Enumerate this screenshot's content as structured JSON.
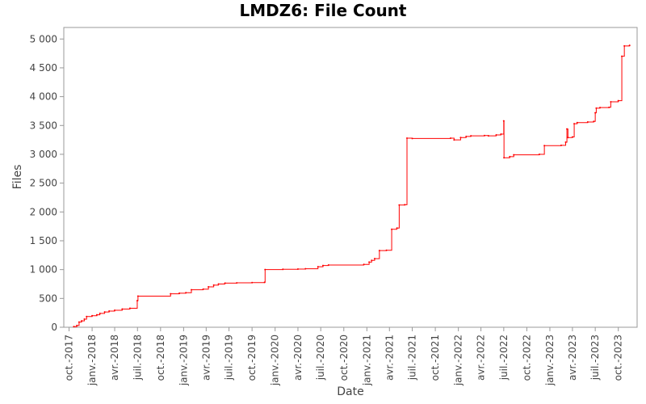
{
  "chart_data": {
    "type": "line",
    "title": "LMDZ6: File Count",
    "xlabel": "Date",
    "ylabel": "Files",
    "xlim": [
      "2017-09-10",
      "2023-12-15"
    ],
    "ylim": [
      0,
      5200
    ],
    "y_ticks": [
      0,
      500,
      1000,
      1500,
      2000,
      2500,
      3000,
      3500,
      4000,
      4500,
      5000
    ],
    "y_tick_labels": [
      "0",
      "500",
      "1 000",
      "1 500",
      "2 000",
      "2 500",
      "3 000",
      "3 500",
      "4 000",
      "4 500",
      "5 000"
    ],
    "x_ticks": [
      "2017-10-01",
      "2018-01-01",
      "2018-04-01",
      "2018-07-01",
      "2018-10-01",
      "2019-01-01",
      "2019-04-01",
      "2019-07-01",
      "2019-10-01",
      "2020-01-01",
      "2020-04-01",
      "2020-07-01",
      "2020-10-01",
      "2021-01-01",
      "2021-04-01",
      "2021-07-01",
      "2021-10-01",
      "2022-01-01",
      "2022-04-01",
      "2022-07-01",
      "2022-10-01",
      "2023-01-01",
      "2023-04-01",
      "2023-07-01",
      "2023-10-01"
    ],
    "x_tick_labels": [
      "oct.-2017",
      "janv.-2018",
      "avr.-2018",
      "juil.-2018",
      "oct.-2018",
      "janv.-2019",
      "avr.-2019",
      "juil.-2019",
      "oct.-2019",
      "janv.-2020",
      "avr.-2020",
      "juil.-2020",
      "oct.-2020",
      "janv.-2021",
      "avr.-2021",
      "juil.-2021",
      "oct.-2021",
      "janv.-2022",
      "avr.-2022",
      "juil.-2022",
      "oct.-2022",
      "janv.-2023",
      "avr.-2023",
      "juil.-2023",
      "oct.-2023"
    ],
    "grid": false,
    "legend": "none",
    "series": [
      {
        "color": "#ff0000",
        "step": true,
        "points": [
          [
            "2017-10-20",
            10
          ],
          [
            "2017-11-01",
            30
          ],
          [
            "2017-11-10",
            90
          ],
          [
            "2017-11-20",
            110
          ],
          [
            "2017-12-01",
            140
          ],
          [
            "2017-12-10",
            185
          ],
          [
            "2018-01-01",
            200
          ],
          [
            "2018-01-20",
            215
          ],
          [
            "2018-02-01",
            240
          ],
          [
            "2018-02-20",
            265
          ],
          [
            "2018-03-10",
            280
          ],
          [
            "2018-04-01",
            295
          ],
          [
            "2018-05-01",
            315
          ],
          [
            "2018-06-01",
            330
          ],
          [
            "2018-06-30",
            460
          ],
          [
            "2018-07-03",
            540
          ],
          [
            "2018-11-10",
            580
          ],
          [
            "2018-12-15",
            590
          ],
          [
            "2019-01-10",
            600
          ],
          [
            "2019-02-01",
            650
          ],
          [
            "2019-03-20",
            660
          ],
          [
            "2019-04-10",
            700
          ],
          [
            "2019-05-01",
            730
          ],
          [
            "2019-05-20",
            750
          ],
          [
            "2019-06-15",
            765
          ],
          [
            "2019-08-01",
            770
          ],
          [
            "2019-10-01",
            775
          ],
          [
            "2019-11-20",
            780
          ],
          [
            "2019-11-22",
            1000
          ],
          [
            "2020-02-01",
            1005
          ],
          [
            "2020-04-01",
            1010
          ],
          [
            "2020-05-01",
            1015
          ],
          [
            "2020-06-20",
            1050
          ],
          [
            "2020-07-10",
            1070
          ],
          [
            "2020-08-01",
            1080
          ],
          [
            "2020-12-20",
            1090
          ],
          [
            "2021-01-10",
            1130
          ],
          [
            "2021-01-20",
            1160
          ],
          [
            "2021-02-01",
            1190
          ],
          [
            "2021-02-20",
            1330
          ],
          [
            "2021-03-20",
            1335
          ],
          [
            "2021-04-10",
            1700
          ],
          [
            "2021-05-01",
            1720
          ],
          [
            "2021-05-10",
            2120
          ],
          [
            "2021-06-01",
            2125
          ],
          [
            "2021-06-10",
            3280
          ],
          [
            "2021-07-01",
            3275
          ],
          [
            "2021-12-01",
            3280
          ],
          [
            "2021-12-15",
            3250
          ],
          [
            "2022-01-10",
            3290
          ],
          [
            "2022-02-01",
            3310
          ],
          [
            "2022-02-20",
            3320
          ],
          [
            "2022-04-15",
            3325
          ],
          [
            "2022-05-01",
            3320
          ],
          [
            "2022-06-01",
            3335
          ],
          [
            "2022-06-20",
            3350
          ],
          [
            "2022-07-01",
            3580
          ],
          [
            "2022-07-02",
            2940
          ],
          [
            "2022-07-25",
            2960
          ],
          [
            "2022-08-10",
            2990
          ],
          [
            "2022-11-20",
            3000
          ],
          [
            "2022-12-10",
            3150
          ],
          [
            "2023-02-15",
            3155
          ],
          [
            "2023-03-05",
            3210
          ],
          [
            "2023-03-10",
            3440
          ],
          [
            "2023-03-14",
            3290
          ],
          [
            "2023-04-01",
            3300
          ],
          [
            "2023-04-08",
            3530
          ],
          [
            "2023-04-20",
            3550
          ],
          [
            "2023-06-01",
            3560
          ],
          [
            "2023-06-25",
            3570
          ],
          [
            "2023-07-01",
            3720
          ],
          [
            "2023-07-05",
            3800
          ],
          [
            "2023-07-20",
            3810
          ],
          [
            "2023-08-25",
            3815
          ],
          [
            "2023-09-01",
            3910
          ],
          [
            "2023-10-01",
            3930
          ],
          [
            "2023-10-15",
            4700
          ],
          [
            "2023-10-25",
            4880
          ],
          [
            "2023-11-15",
            4890
          ]
        ]
      }
    ]
  }
}
